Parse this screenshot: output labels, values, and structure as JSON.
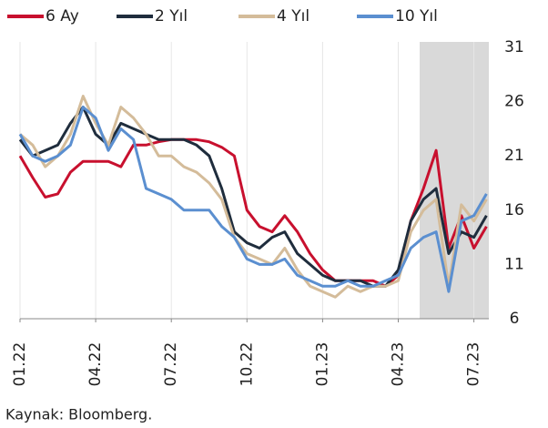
{
  "chart_data": {
    "type": "line",
    "categories": [
      "01.22",
      null,
      null,
      null,
      null,
      null,
      "04.22",
      null,
      null,
      null,
      null,
      null,
      "07.22",
      null,
      null,
      null,
      null,
      null,
      "10.22",
      null,
      null,
      null,
      null,
      null,
      "01.23",
      null,
      null,
      null,
      null,
      null,
      "04.23",
      null,
      null,
      null,
      null,
      null,
      "07.23",
      null
    ],
    "series": [
      {
        "name": "6 Ay",
        "color": "#c8102e",
        "values": [
          21,
          19,
          17.2,
          17.5,
          19.5,
          20.5,
          20.5,
          20.5,
          20,
          22,
          22,
          22.3,
          22.5,
          22.5,
          22.5,
          22.3,
          21.8,
          21,
          16,
          14.5,
          14,
          15.5,
          14,
          12,
          10.5,
          9.5,
          9.5,
          9.5,
          9.5,
          9,
          10,
          15,
          18,
          21.5,
          12.5,
          15.5,
          12.5,
          14.5
        ]
      },
      {
        "name": "2 Yıl",
        "color": "#1f2d3d",
        "values": [
          22.5,
          21,
          21.5,
          22,
          24,
          25.5,
          23,
          22,
          24,
          23.5,
          23,
          22.5,
          22.5,
          22.5,
          22,
          21,
          18,
          14,
          13,
          12.5,
          13.5,
          14,
          12,
          11,
          10,
          9.5,
          9.5,
          9.5,
          9,
          9,
          10.5,
          15,
          17,
          18,
          12,
          14,
          13.5,
          15.5
        ]
      },
      {
        "name": "4 Yıl",
        "color": "#d4bc9a",
        "values": [
          23,
          22,
          20,
          21,
          23,
          26.5,
          24,
          22,
          25.5,
          24.5,
          23,
          21,
          21,
          20,
          19.5,
          18.5,
          17,
          13.5,
          12,
          11.5,
          11,
          12.5,
          10.5,
          9,
          8.5,
          8,
          9,
          8.5,
          9,
          9,
          9.5,
          14,
          16,
          17,
          9,
          16.5,
          15,
          17
        ]
      },
      {
        "name": "10 Yıl",
        "color": "#5b8fd0",
        "values": [
          23,
          21,
          20.5,
          21,
          22,
          25.5,
          24.5,
          21.5,
          23.5,
          22.5,
          18,
          17.5,
          17,
          16,
          16,
          16,
          14.5,
          13.5,
          11.5,
          11,
          11,
          11.5,
          10,
          9.5,
          9,
          9,
          9.5,
          9,
          9,
          9.5,
          10,
          12.5,
          13.5,
          14,
          8.5,
          15,
          15.5,
          17.5
        ]
      }
    ],
    "ylim": [
      6,
      31
    ],
    "yticks": [
      6,
      11,
      16,
      21,
      26,
      31
    ],
    "grid": true,
    "legend": "top",
    "source": "Kaynak: Bloomberg."
  }
}
